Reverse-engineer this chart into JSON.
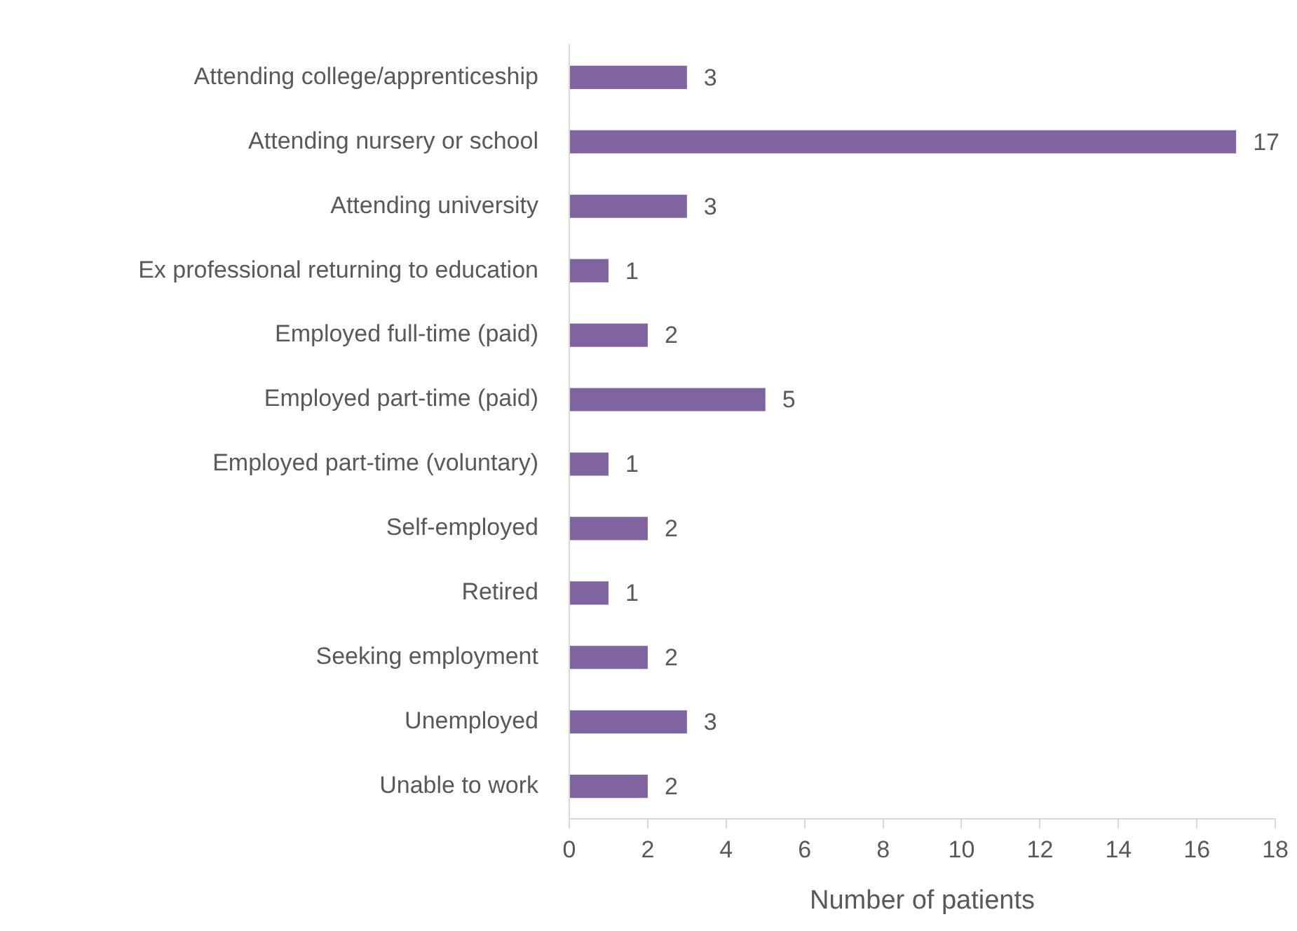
{
  "chart_data": {
    "type": "bar",
    "orientation": "horizontal",
    "xlabel": "Number of patients",
    "categories": [
      "Attending college/apprenticeship",
      "Attending nursery or school",
      "Attending university",
      "Ex professional returning to education",
      "Employed full-time (paid)",
      "Employed part-time (paid)",
      "Employed part-time (voluntary)",
      "Self-employed",
      "Retired",
      "Seeking employment",
      "Unemployed",
      "Unable to work"
    ],
    "values": [
      3,
      17,
      3,
      1,
      2,
      5,
      1,
      2,
      1,
      2,
      3,
      2
    ],
    "color": "#8064a2",
    "xlim": [
      0,
      18
    ],
    "xticks": [
      0,
      2,
      4,
      6,
      8,
      10,
      12,
      14,
      16,
      18
    ],
    "grid": false,
    "legend": false,
    "data_labels": true
  }
}
